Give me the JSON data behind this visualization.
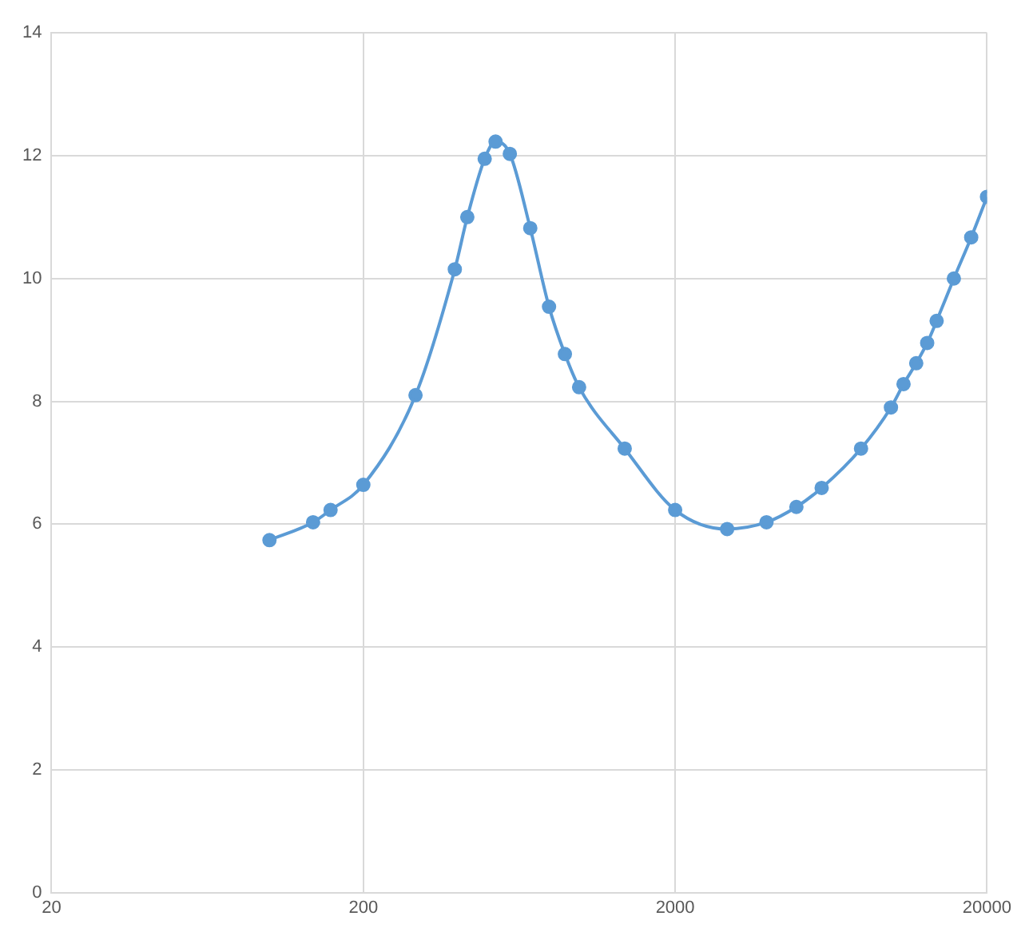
{
  "chart_data": {
    "type": "line",
    "x": [
      100,
      138,
      157,
      200,
      294,
      393,
      431,
      490,
      531,
      590,
      686,
      788,
      886,
      984,
      1378,
      2000,
      2936,
      3926,
      4896,
      5900,
      7890,
      9840,
      10800,
      11860,
      12860,
      13790,
      15660,
      17800,
      20000
    ],
    "series": [
      {
        "color": "#5b9bd5",
        "values": [
          5.74,
          6.03,
          6.23,
          6.64,
          8.1,
          10.15,
          11.0,
          11.95,
          12.23,
          12.03,
          10.82,
          9.54,
          8.77,
          8.23,
          7.23,
          6.23,
          5.92,
          6.03,
          6.28,
          6.59,
          7.23,
          7.9,
          8.28,
          8.62,
          8.95,
          9.31,
          10.0,
          10.67,
          11.33
        ]
      }
    ],
    "log": "x",
    "xlim": [
      20,
      20000
    ],
    "xticks": [
      20,
      200,
      2000,
      20000
    ],
    "ylim": [
      0,
      14
    ],
    "yticks": [
      0,
      2,
      4,
      6,
      8,
      10,
      12,
      14
    ],
    "grid": true,
    "legend": false,
    "marker": "circle",
    "line_style": "solid"
  }
}
